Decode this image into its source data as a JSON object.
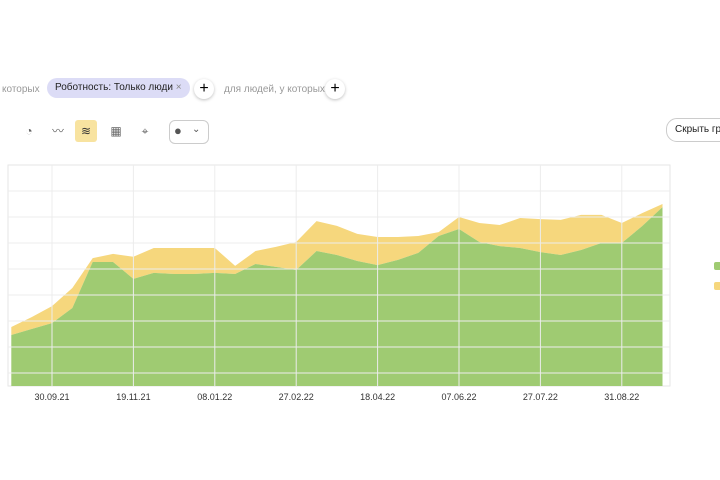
{
  "filters": {
    "prefix": "которых",
    "chip": "Роботность: Только люди",
    "suffix": "для людей, у которых"
  },
  "toolbar": {
    "hide_button": "Скрыть гр"
  },
  "chart_data": {
    "type": "area",
    "stacked": true,
    "grid": true,
    "categories": [
      null,
      null,
      "30.09.21",
      null,
      null,
      null,
      "19.11.21",
      null,
      null,
      null,
      "08.01.22",
      null,
      null,
      null,
      "27.02.22",
      null,
      null,
      null,
      "18.04.22",
      null,
      null,
      null,
      "07.06.22",
      null,
      null,
      null,
      "27.07.22",
      null,
      null,
      null,
      "31.08.22",
      null,
      null
    ],
    "ylim": [
      0,
      8.5
    ],
    "yticks": [
      0.5,
      1.5,
      2.5,
      3.5,
      4.5,
      5.5,
      6.5,
      7.5
    ],
    "series": [
      {
        "color": "#9fcb72",
        "values": [
          1.96,
          2.19,
          2.42,
          3.0,
          4.77,
          4.77,
          4.12,
          4.35,
          4.31,
          4.31,
          4.35,
          4.31,
          4.69,
          4.58,
          4.46,
          5.19,
          5.04,
          4.81,
          4.65,
          4.85,
          5.12,
          5.77,
          6.04,
          5.54,
          5.38,
          5.31,
          5.15,
          5.04,
          5.23,
          5.5,
          5.5,
          6.15,
          6.88
        ]
      },
      {
        "color": "#f6d77d",
        "values": [
          0.31,
          0.46,
          0.65,
          0.77,
          0.15,
          0.31,
          0.85,
          0.96,
          1.0,
          1.0,
          0.96,
          0.31,
          0.5,
          0.77,
          1.08,
          1.15,
          1.12,
          1.04,
          1.08,
          0.88,
          0.65,
          0.15,
          0.46,
          0.73,
          0.81,
          1.15,
          1.27,
          1.35,
          1.35,
          1.08,
          0.77,
          0.5,
          0.12
        ]
      }
    ]
  }
}
